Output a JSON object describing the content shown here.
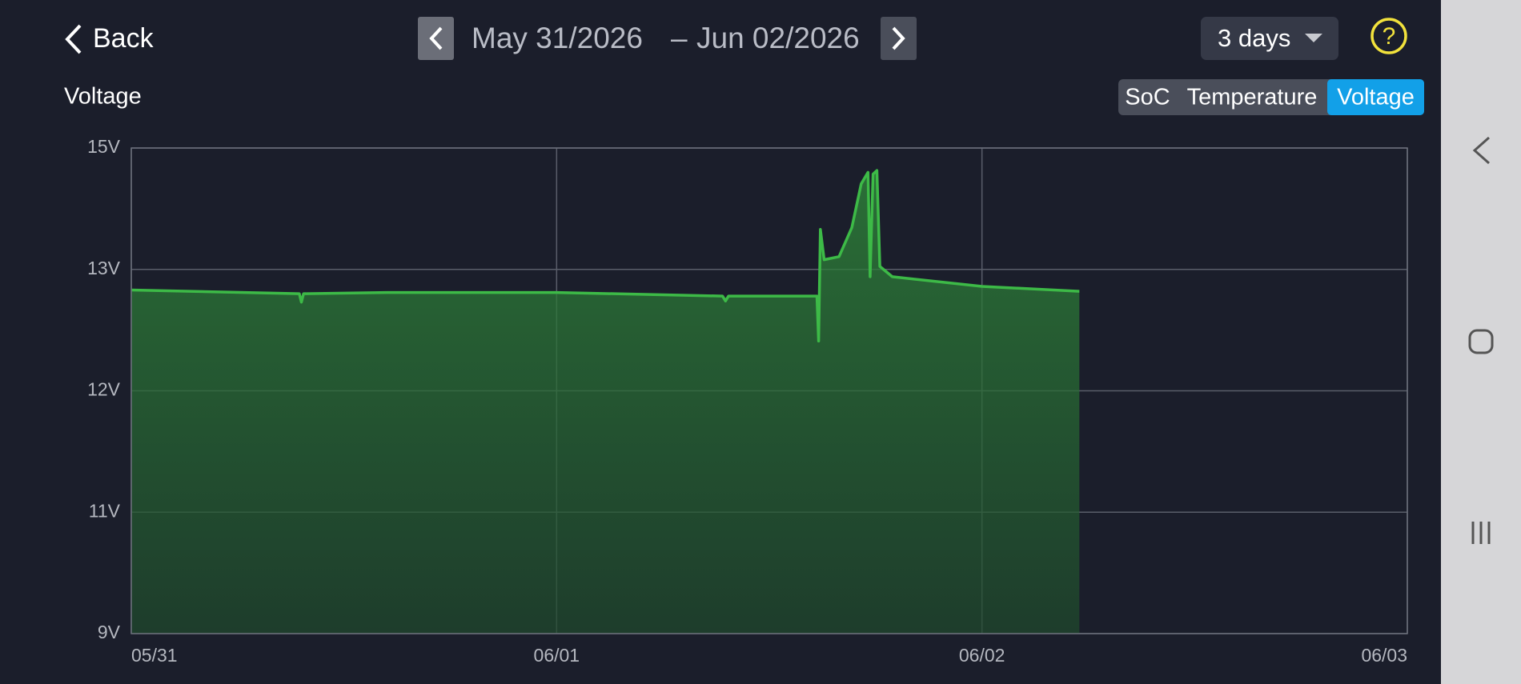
{
  "header": {
    "back": "Back",
    "start_date": "May 31/2026",
    "separator": "–",
    "end_date": "Jun 02/2026",
    "range": "3 days",
    "help": "?"
  },
  "tabs": [
    "SoC",
    "Temperature",
    "Voltage"
  ],
  "active_tab": 2,
  "chart_data": {
    "type": "area",
    "title": "Voltage",
    "x": [
      0,
      0.395,
      0.4,
      0.405,
      0.6,
      1.0,
      1.39,
      1.397,
      1.404,
      1.612,
      1.616,
      1.62,
      1.629,
      1.664,
      1.694,
      1.716,
      1.732,
      1.737,
      1.744,
      1.753,
      1.76,
      1.789,
      2.0,
      2.229
    ],
    "series": [
      {
        "name": "Voltage",
        "color": "#3dba47",
        "values": [
          12.83,
          12.8,
          12.73,
          12.8,
          12.81,
          12.81,
          12.78,
          12.74,
          12.78,
          12.78,
          12.41,
          13.66,
          13.16,
          13.21,
          13.69,
          14.41,
          14.6,
          12.94,
          14.57,
          14.63,
          13.05,
          12.94,
          12.86,
          12.82
        ]
      }
    ],
    "xlim": [
      0,
      3
    ],
    "xticks": [
      {
        "value": 0,
        "label": "05/31"
      },
      {
        "value": 1,
        "label": "06/01"
      },
      {
        "value": 2,
        "label": "06/02"
      },
      {
        "value": 3,
        "label": "06/03"
      }
    ],
    "ylim": [
      9,
      15
    ],
    "yticks": [
      {
        "value": 9,
        "label": "9V"
      },
      {
        "value": 11,
        "label": "11V"
      },
      {
        "value": 12,
        "label": "12V"
      },
      {
        "value": 13,
        "label": "13V"
      },
      {
        "value": 15,
        "label": "15V"
      }
    ],
    "grid": true
  }
}
